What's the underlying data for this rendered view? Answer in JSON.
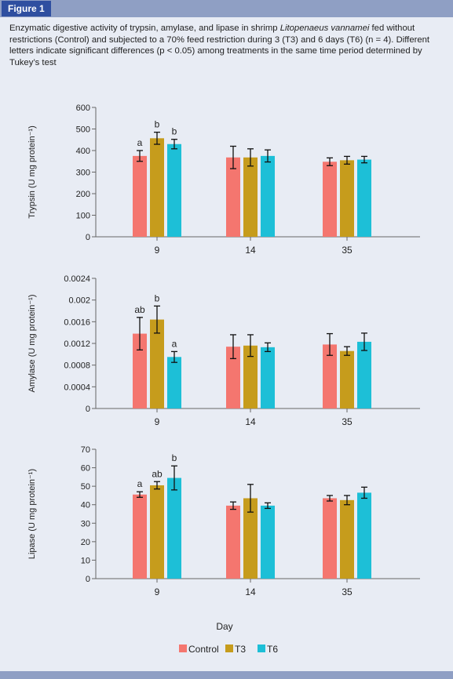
{
  "figure_label": "Figure 1",
  "caption": {
    "part1": "Enzymatic digestive activity of trypsin, amylase, and lipase in shrimp ",
    "species": "Litopenaeus vannamei",
    "part2": " fed without restrictions (Control) and subjected to a 70% feed restriction during 3 (T3) and 6 days (T6) (n = 4). Different letters indicate significant differences (p < 0.05) among treatments in the same time period determined by Tukey’s test"
  },
  "colors": {
    "Control": "#f4766f",
    "T3": "#c69c1c",
    "T6": "#1dbfd7",
    "axis": "#666666",
    "frame_bg": "#e8ecf4",
    "strip": "#8f9fc4",
    "label_bg": "#2f4fa0"
  },
  "xlabel": "Day",
  "legend": [
    "Control",
    "T3",
    "T6"
  ],
  "chart_data": [
    {
      "type": "bar",
      "title": "",
      "xlabel": "Day",
      "ylabel": "Trypsin (U mg protein⁻¹)",
      "categories": [
        "9",
        "14",
        "35"
      ],
      "ylim": [
        0,
        600
      ],
      "yticks": [
        0,
        100,
        200,
        300,
        400,
        500,
        600
      ],
      "ytick_labels": [
        "0",
        "100",
        "200",
        "300",
        "400",
        "500",
        "600"
      ],
      "series": [
        {
          "name": "Control",
          "values": [
            375,
            368,
            348
          ],
          "err": [
            25,
            52,
            18
          ],
          "letters": [
            "a",
            "",
            ""
          ]
        },
        {
          "name": "T3",
          "values": [
            457,
            368,
            355
          ],
          "err": [
            28,
            40,
            18
          ],
          "letters": [
            "b",
            "",
            ""
          ]
        },
        {
          "name": "T6",
          "values": [
            430,
            375,
            358
          ],
          "err": [
            22,
            28,
            15
          ],
          "letters": [
            "b",
            "",
            ""
          ]
        }
      ]
    },
    {
      "type": "bar",
      "title": "",
      "xlabel": "Day",
      "ylabel": "Amylase (U mg protein⁻¹)",
      "categories": [
        "9",
        "14",
        "35"
      ],
      "ylim": [
        0,
        0.0024
      ],
      "yticks": [
        0,
        0.0004,
        0.0008,
        0.0012,
        0.0016,
        0.002,
        0.0024
      ],
      "ytick_labels": [
        "0",
        "0.0004",
        "0.0008",
        "0.0012",
        "0.0016",
        "0.002",
        "0.0024"
      ],
      "series": [
        {
          "name": "Control",
          "values": [
            0.00138,
            0.00114,
            0.00118
          ],
          "err": [
            0.0003,
            0.00022,
            0.0002
          ],
          "letters": [
            "ab",
            "",
            ""
          ]
        },
        {
          "name": "T3",
          "values": [
            0.00164,
            0.00116,
            0.00106
          ],
          "err": [
            0.00025,
            0.0002,
            8e-05
          ],
          "letters": [
            "b",
            "",
            ""
          ]
        },
        {
          "name": "T6",
          "values": [
            0.00095,
            0.00113,
            0.00123
          ],
          "err": [
            0.0001,
            8e-05,
            0.00016
          ],
          "letters": [
            "a",
            "",
            ""
          ]
        }
      ]
    },
    {
      "type": "bar",
      "title": "",
      "xlabel": "Day",
      "ylabel": "Lipase (U mg protein⁻¹)",
      "categories": [
        "9",
        "14",
        "35"
      ],
      "ylim": [
        0,
        70
      ],
      "yticks": [
        0,
        10,
        20,
        30,
        40,
        50,
        60,
        70
      ],
      "ytick_labels": [
        "0",
        "10",
        "20",
        "30",
        "40",
        "50",
        "60",
        "70"
      ],
      "series": [
        {
          "name": "Control",
          "values": [
            45.5,
            39.5,
            43.5
          ],
          "err": [
            1.5,
            2,
            1.5
          ],
          "letters": [
            "a",
            "",
            ""
          ]
        },
        {
          "name": "T3",
          "values": [
            50.5,
            43.5,
            42.5
          ],
          "err": [
            2,
            7.5,
            2.5
          ],
          "letters": [
            "ab",
            "",
            ""
          ]
        },
        {
          "name": "T6",
          "values": [
            54.5,
            39.5,
            46.5
          ],
          "err": [
            6.5,
            1.5,
            3
          ],
          "letters": [
            "b",
            "",
            ""
          ]
        }
      ]
    }
  ]
}
